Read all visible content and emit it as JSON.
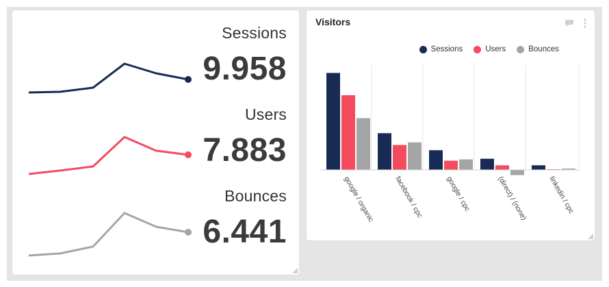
{
  "kpi": [
    {
      "label": "Sessions",
      "value": "9.958",
      "color": "#172b54"
    },
    {
      "label": "Users",
      "value": "7.883",
      "color": "#f54b5e"
    },
    {
      "label": "Bounces",
      "value": "6.441",
      "color": "#a5a5a5"
    }
  ],
  "visitors": {
    "title": "Visitors",
    "comment_icon": "comment-icon",
    "menu_icon": "kebab-menu-icon"
  },
  "chart_data": [
    {
      "type": "line",
      "series": [
        {
          "name": "Sessions",
          "values": [
            1.0,
            1.5,
            4.5,
            22.0,
            15.0,
            10.5
          ]
        },
        {
          "name": "Users",
          "values": [
            1.0,
            3.5,
            6.5,
            28.0,
            18.0,
            15.0
          ]
        },
        {
          "name": "Bounces",
          "values": [
            1.0,
            2.5,
            7.5,
            32.0,
            22.0,
            18.0
          ]
        }
      ],
      "legend": "none",
      "grid": false
    },
    {
      "type": "bar",
      "title": "Visitors",
      "categories": [
        "google / organic",
        "facebook / cpc",
        "google / cpc",
        "(direct) / (none)",
        "linkedin / cpc"
      ],
      "series": [
        {
          "name": "Sessions",
          "color": "#172b54",
          "values": [
            148,
            56,
            30,
            17,
            7
          ]
        },
        {
          "name": "Users",
          "color": "#f54b5e",
          "values": [
            114,
            38,
            14,
            7,
            1
          ]
        },
        {
          "name": "Bounces",
          "color": "#a5a5a5",
          "values": [
            79,
            42,
            16,
            -8,
            2
          ]
        }
      ],
      "ylim": [
        -40,
        160
      ],
      "grid": true,
      "legend": "top-right"
    }
  ]
}
